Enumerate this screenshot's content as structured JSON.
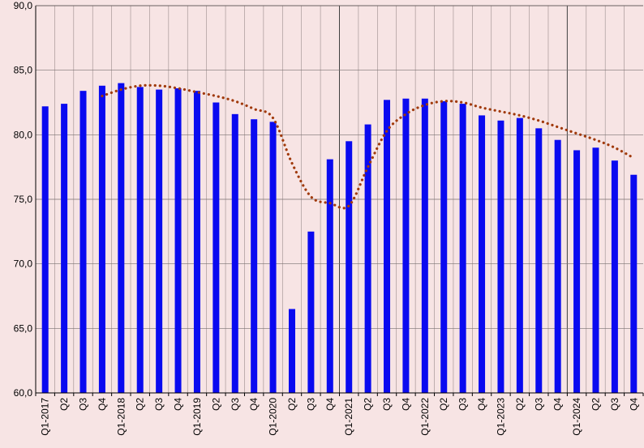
{
  "chart_data": {
    "type": "bar",
    "title": "",
    "xlabel": "",
    "ylabel": "",
    "ylim": [
      60,
      90
    ],
    "yticks": [
      "60,0",
      "65,0",
      "70,0",
      "75,0",
      "80,0",
      "85,0",
      "90,0"
    ],
    "ytick_values": [
      60,
      65,
      70,
      75,
      80,
      85,
      90
    ],
    "grid": true,
    "legend": "none",
    "categories": [
      "Q1-2017",
      "Q2",
      "Q3",
      "Q4",
      "Q1-2018",
      "Q2",
      "Q3",
      "Q4",
      "Q1-2019",
      "Q2",
      "Q3",
      "Q4",
      "Q1-2020",
      "Q2",
      "Q3",
      "Q4",
      "Q1-2021",
      "Q2",
      "Q3",
      "Q4",
      "Q1-2022",
      "Q2",
      "Q3",
      "Q4",
      "Q1-2023",
      "Q2",
      "Q3",
      "Q4",
      "Q1-2024",
      "Q2",
      "Q3",
      "Q4"
    ],
    "series": [
      {
        "type": "bar",
        "values": [
          82.2,
          82.4,
          83.4,
          83.8,
          84.0,
          83.7,
          83.5,
          83.6,
          83.4,
          82.5,
          81.6,
          81.2,
          81.0,
          66.5,
          72.5,
          78.1,
          79.5,
          80.8,
          82.7,
          82.8,
          82.8,
          82.6,
          82.4,
          81.5,
          81.1,
          81.3,
          80.5,
          79.6,
          78.8,
          79.0,
          78.0,
          76.9
        ],
        "color": "#0a0af0"
      },
      {
        "type": "line",
        "style": "dotted",
        "values": [
          null,
          null,
          null,
          83.0,
          83.5,
          83.8,
          83.8,
          83.6,
          83.3,
          83.0,
          82.6,
          82.0,
          81.3,
          77.8,
          75.2,
          74.7,
          74.5,
          77.5,
          80.3,
          81.6,
          82.3,
          82.6,
          82.5,
          82.1,
          81.8,
          81.5,
          81.1,
          80.6,
          80.1,
          79.6,
          79.0,
          78.2
        ],
        "color": "#a0390a"
      }
    ]
  }
}
